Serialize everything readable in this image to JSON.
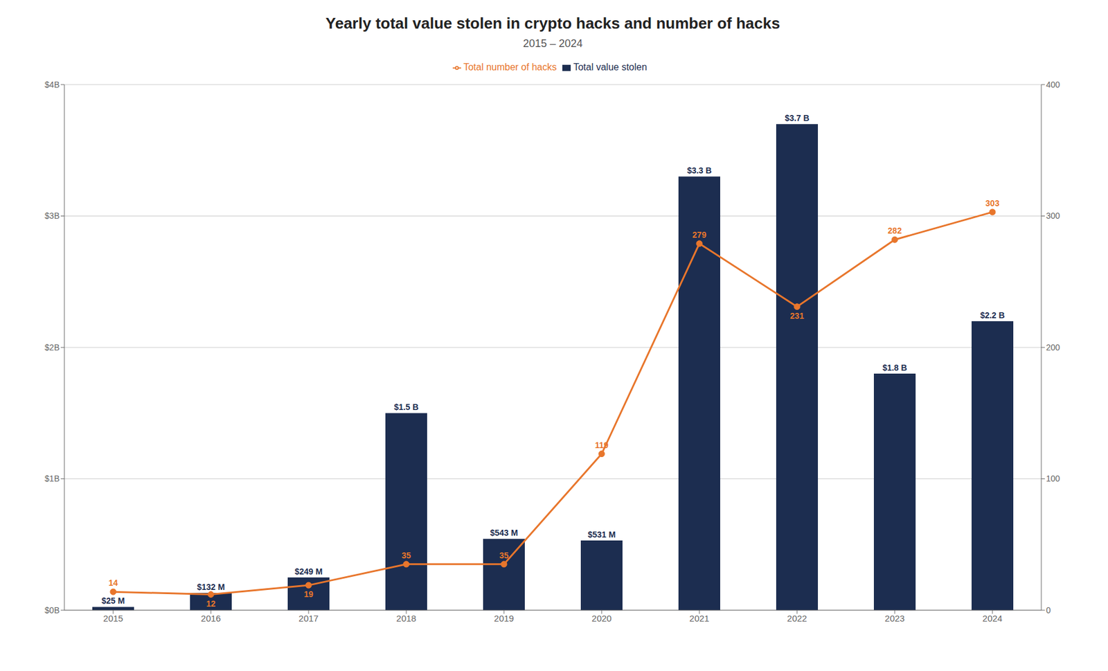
{
  "chart_data": {
    "type": "bar",
    "title": "Yearly total value stolen in crypto hacks and number of hacks",
    "subtitle": "2015 – 2024",
    "categories": [
      "2015",
      "2016",
      "2017",
      "2018",
      "2019",
      "2020",
      "2021",
      "2022",
      "2023",
      "2024"
    ],
    "series": [
      {
        "name": "Total value stolen",
        "type": "bar",
        "color": "#1c2d50",
        "values": [
          0.025,
          0.132,
          0.249,
          1.5,
          0.543,
          0.531,
          3.3,
          3.7,
          1.8,
          2.2
        ],
        "value_labels": [
          "$25 M",
          "$132 M",
          "$249 M",
          "$1.5 B",
          "$543 M",
          "$531 M",
          "$3.3 B",
          "$3.7 B",
          "$1.8 B",
          "$2.2 B"
        ],
        "data_labels": true
      },
      {
        "name": "Total number of hacks",
        "type": "line",
        "color": "#e8762c",
        "axis": "y2",
        "marker": "circle",
        "values": [
          14,
          12,
          19,
          35,
          35,
          119,
          279,
          231,
          282,
          303
        ],
        "data_labels": true
      }
    ],
    "ylim": [
      0,
      4.0
    ],
    "yticks": [
      {
        "value": 0,
        "label": "$0B"
      },
      {
        "value": 1,
        "label": "$1B"
      },
      {
        "value": 2,
        "label": "$2B"
      },
      {
        "value": 3,
        "label": "$3B"
      },
      {
        "value": 4,
        "label": "$4B"
      }
    ],
    "y2lim": [
      0,
      400
    ],
    "y2ticks": [
      0,
      100,
      200,
      300,
      400
    ],
    "grid": true,
    "legend": "top"
  }
}
